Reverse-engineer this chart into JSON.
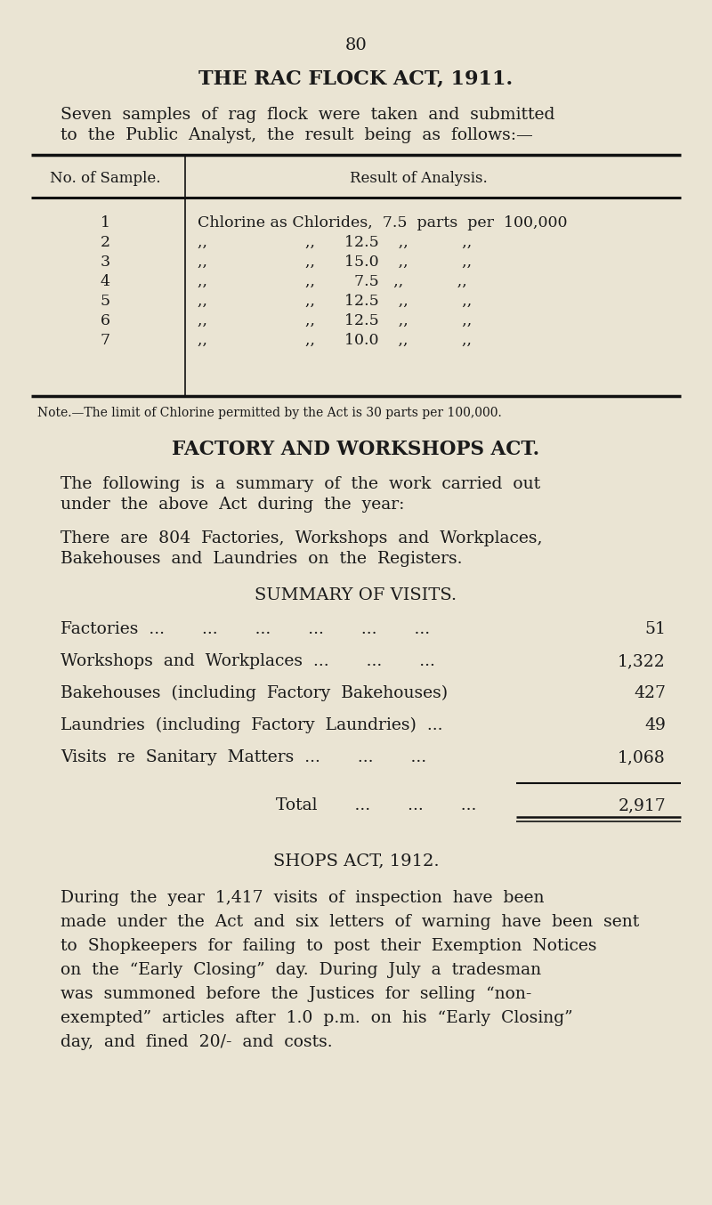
{
  "bg_color": "#EAE4D3",
  "text_color": "#1a1a1a",
  "page_number": "80",
  "title1": "THE RAC FLOCK ACT, 1911.",
  "intro1_line1": "Seven  samples  of  rag  flock  were  taken  and  submitted",
  "intro1_line2": "to  the  Public  Analyst,  the  result  being  as  follows:—",
  "table_header_left": "No. of Sample.",
  "table_header_right": "Result of Analysis.",
  "table_rows": [
    [
      "1",
      "Chlorine as Chlorides,  7.5  parts  per  100,000"
    ],
    [
      "2",
      ",,                    ,,      12.5    ,,           ,,"
    ],
    [
      "3",
      ",,                    ,,      15.0    ,,           ,,"
    ],
    [
      "4",
      ",,                    ,,        7.5   ,,           ,,"
    ],
    [
      "5",
      ",,                    ,,      12.5    ,,           ,,"
    ],
    [
      "6",
      ",,                    ,,      12.5    ,,           ,,"
    ],
    [
      "7",
      ",,                    ,,      10.0    ,,           ,,"
    ]
  ],
  "note": "Note.—The limit of Chlorine permitted by the Act is 30 parts per 100,000.",
  "title2": "FACTORY AND WORKSHOPS ACT.",
  "intro2_line1": "The  following  is  a  summary  of  the  work  carried  out",
  "intro2_line2": "under  the  above  Act  during  the  year:",
  "intro2b_line1": "There  are  804  Factories,  Workshops  and  Workplaces,",
  "intro2b_line2": "Bakehouses  and  Laundries  on  the  Registers.",
  "summary_title": "SUMMARY OF VISITS.",
  "summary_rows": [
    [
      "Factories  ...       ...       ...       ...       ...       ...",
      "51"
    ],
    [
      "Workshops  and  Workplaces  ...       ...       ...",
      "1,322"
    ],
    [
      "Bakehouses  (including  Factory  Bakehouses)",
      "427"
    ],
    [
      "Laundries  (including  Factory  Laundries)  ...",
      "49"
    ],
    [
      "Visits  re  Sanitary  Matters  ...       ...       ...",
      "1,068"
    ]
  ],
  "total_label": "Total       ...       ...       ...",
  "total_value": "2,917",
  "title3": "SHOPS ACT, 1912.",
  "para3_lines": [
    "During  the  year  1,417  visits  of  inspection  have  been",
    "made  under  the  Act  and  six  letters  of  warning  have  been  sent",
    "to  Shopkeepers  for  failing  to  post  their  Exemption  Notices",
    "on  the  “Early  Closing”  day.  During  July  a  tradesman",
    "was  summoned  before  the  Justices  for  selling  “non-",
    "exempted”  articles  after  1.0  p.m.  on  his  “Early  Closing”",
    "day,  and  fined  20/-  and  costs."
  ]
}
